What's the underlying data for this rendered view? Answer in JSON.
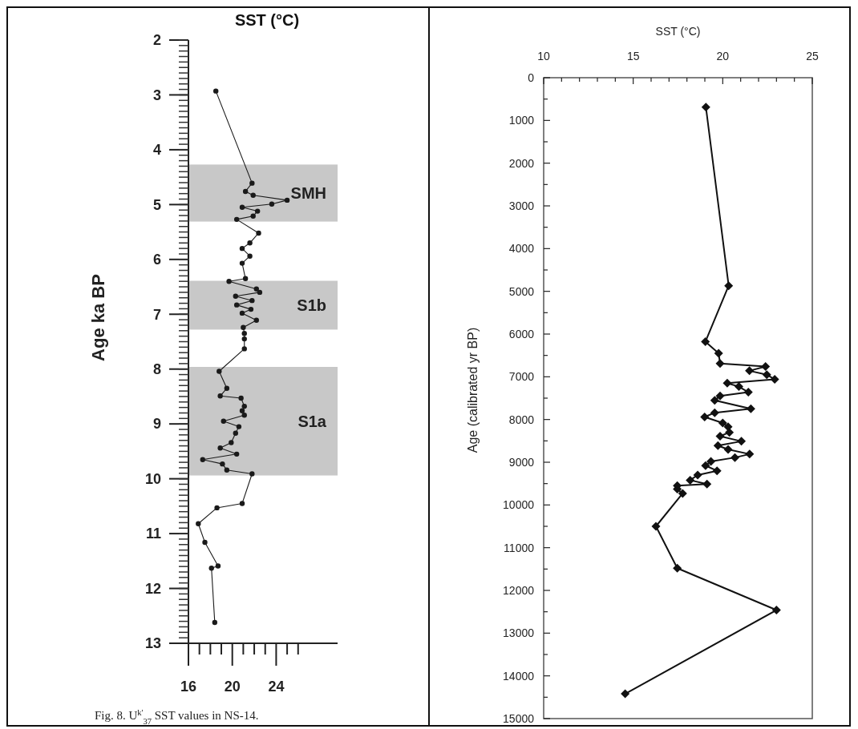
{
  "chart_data": [
    {
      "type": "line",
      "title": "SST (°C)",
      "ylabel": "Age ka BP",
      "marker": "circle",
      "line_style": "solid",
      "grid": false,
      "annotations": [
        "Fig. 8. U$^{k'}$$_{37}$ SST values in NS-14."
      ],
      "xlim": [
        16,
        29.6
      ],
      "xticks": [
        16,
        {
          "value": 17,
          "label": null
        },
        {
          "value": 18,
          "label": null
        },
        {
          "value": 19,
          "label": null
        },
        20,
        {
          "value": 21,
          "label": null
        },
        {
          "value": 22,
          "label": null
        },
        {
          "value": 23,
          "label": null
        },
        24,
        {
          "value": 25,
          "label": null
        },
        {
          "value": 26,
          "label": null
        }
      ],
      "ylim": [
        13,
        2
      ],
      "yticks": [
        2,
        3,
        4,
        5,
        6,
        7,
        8,
        9,
        10,
        11,
        12,
        13
      ],
      "bands": [
        {
          "axis": "y",
          "from": 4.27,
          "to": 5.31,
          "label": "SMH",
          "color": "#c8c8c8"
        },
        {
          "axis": "y",
          "from": 6.39,
          "to": 7.28,
          "label": "S1b",
          "color": "#c8c8c8"
        },
        {
          "axis": "y",
          "from": 7.96,
          "to": 9.94,
          "label": "S1a",
          "color": "#c8c8c8"
        }
      ],
      "series": [
        {
          "color": "#1a1a1a",
          "x": [
            18.5,
            21.8,
            21.2,
            21.9,
            25.0,
            23.6,
            20.9,
            22.3,
            21.9,
            20.4,
            22.4,
            21.6,
            20.9,
            21.6,
            20.9,
            21.2,
            19.7,
            22.2,
            22.5,
            20.3,
            21.8,
            20.4,
            21.7,
            20.9,
            22.2,
            21.0,
            21.1,
            21.1,
            21.1,
            18.8,
            19.5,
            18.9,
            20.8,
            21.1,
            20.9,
            21.1,
            19.2,
            20.6,
            20.3,
            19.9,
            18.9,
            20.4,
            17.3,
            19.1,
            19.5,
            21.8,
            20.9,
            18.6,
            16.9,
            17.5,
            18.7,
            18.1,
            18.4
          ],
          "values": [
            2.93,
            4.61,
            4.76,
            4.83,
            4.92,
            4.99,
            5.05,
            5.12,
            5.21,
            5.27,
            5.52,
            5.7,
            5.8,
            5.94,
            6.07,
            6.35,
            6.4,
            6.54,
            6.6,
            6.67,
            6.75,
            6.83,
            6.91,
            6.98,
            7.11,
            7.24,
            7.35,
            7.45,
            7.63,
            8.04,
            8.35,
            8.49,
            8.53,
            8.68,
            8.76,
            8.84,
            8.95,
            9.05,
            9.17,
            9.34,
            9.44,
            9.55,
            9.65,
            9.73,
            9.84,
            9.91,
            10.45,
            10.53,
            10.82,
            11.16,
            11.59,
            11.63,
            12.62
          ]
        }
      ]
    },
    {
      "type": "line",
      "xlabel": "SST (°C)",
      "ylabel": "Age (calibrated yr BP)",
      "marker": "diamond",
      "line_style": "solid",
      "grid": false,
      "xlim": [
        10,
        25
      ],
      "xticks": [
        10,
        {
          "value": 11,
          "label": null
        },
        {
          "value": 12,
          "label": null
        },
        {
          "value": 13,
          "label": null
        },
        {
          "value": 14,
          "label": null
        },
        15,
        {
          "value": 16,
          "label": null
        },
        {
          "value": 17,
          "label": null
        },
        {
          "value": 18,
          "label": null
        },
        {
          "value": 19,
          "label": null
        },
        20,
        {
          "value": 21,
          "label": null
        },
        {
          "value": 22,
          "label": null
        },
        {
          "value": 23,
          "label": null
        },
        {
          "value": 24,
          "label": null
        },
        25
      ],
      "ylim": [
        15000,
        0
      ],
      "yticks": [
        0,
        {
          "value": 500,
          "label": null
        },
        1000,
        {
          "value": 1500,
          "label": null
        },
        2000,
        {
          "value": 2500,
          "label": null
        },
        3000,
        {
          "value": 3500,
          "label": null
        },
        4000,
        {
          "value": 4500,
          "label": null
        },
        5000,
        {
          "value": 5500,
          "label": null
        },
        6000,
        {
          "value": 6500,
          "label": null
        },
        7000,
        {
          "value": 7500,
          "label": null
        },
        8000,
        {
          "value": 8500,
          "label": null
        },
        9000,
        {
          "value": 9500,
          "label": null
        },
        10000,
        {
          "value": 10500,
          "label": null
        },
        11000,
        {
          "value": 11500,
          "label": null
        },
        12000,
        {
          "value": 12500,
          "label": null
        },
        13000,
        {
          "value": 13500,
          "label": null
        },
        14000,
        {
          "value": 14500,
          "label": null
        },
        15000
      ],
      "series": [
        {
          "color": "#111111",
          "x": [
            19.06,
            20.33,
            19.03,
            19.77,
            19.85,
            22.39,
            21.49,
            22.46,
            22.9,
            20.25,
            20.9,
            21.43,
            19.85,
            19.55,
            21.57,
            19.55,
            18.99,
            20.0,
            20.3,
            20.37,
            19.85,
            21.04,
            19.73,
            20.3,
            21.5,
            20.68,
            19.34,
            19.04,
            19.68,
            18.6,
            18.18,
            19.12,
            17.46,
            17.46,
            17.76,
            16.27,
            17.46,
            23.0,
            14.55
          ],
          "values": [
            690,
            4870,
            6180,
            6450,
            6690,
            6760,
            6860,
            6950,
            7060,
            7150,
            7230,
            7360,
            7450,
            7550,
            7750,
            7840,
            7940,
            8080,
            8170,
            8300,
            8390,
            8510,
            8610,
            8700,
            8810,
            8890,
            8980,
            9080,
            9200,
            9300,
            9420,
            9510,
            9550,
            9630,
            9730,
            10500,
            11480,
            12460,
            14420
          ]
        }
      ]
    }
  ]
}
